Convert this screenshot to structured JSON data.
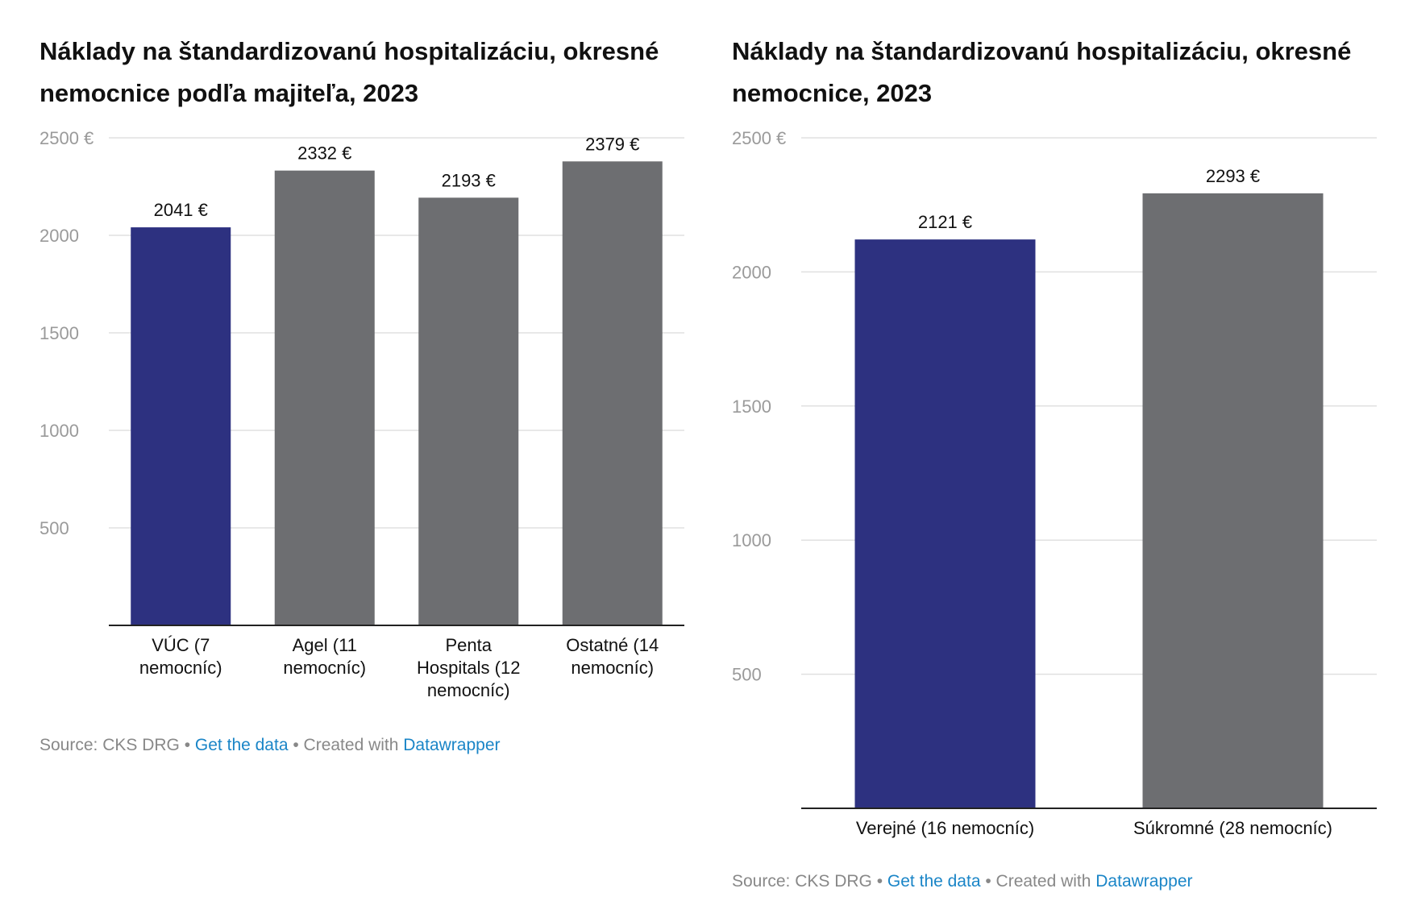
{
  "charts": [
    {
      "title": "Náklady na štandardizovanú hospitalizáciu, okresné nemocnice podľa majiteľa, 2023",
      "footer": {
        "source": "Source: CKS DRG",
        "sep1": " • ",
        "get_data": "Get the data",
        "sep2": " • Created with ",
        "datawrapper": "Datawrapper"
      }
    },
    {
      "title": "Náklady na štandardizovanú hospitalizáciu, okresné nemocnice, 2023",
      "footer": {
        "source": "Source: CKS DRG",
        "sep1": " • ",
        "get_data": "Get the data",
        "sep2": " • Created with ",
        "datawrapper": "Datawrapper"
      }
    }
  ],
  "colors": {
    "highlight": "#2d3180",
    "other": "#6d6e71",
    "grid": "#e0e0e0",
    "axis": "#222222",
    "tick_text": "#9a9a9a",
    "link": "#1a85c7"
  },
  "chart_data": [
    {
      "type": "bar",
      "categories": [
        [
          "VÚC (7",
          "nemocníc)"
        ],
        [
          "Agel (11",
          "nemocníc)"
        ],
        [
          "Penta",
          "Hospitals (12",
          "nemocníc)"
        ],
        [
          "Ostatné (14",
          "nemocníc)"
        ]
      ],
      "values": [
        2041,
        2332,
        2193,
        2379
      ],
      "value_labels": [
        "2041 €",
        "2332 €",
        "2193 €",
        "2379 €"
      ],
      "highlight_index": 0,
      "yticks": [
        500,
        1000,
        1500,
        2000,
        2500
      ],
      "ytick_labels": [
        "500",
        "1000",
        "1500",
        "2000",
        "2500 €"
      ],
      "ylim": [
        0,
        2500
      ],
      "grid": true
    },
    {
      "type": "bar",
      "categories": [
        [
          "Verejné (16 nemocníc)"
        ],
        [
          "Súkromné (28 nemocníc)"
        ]
      ],
      "values": [
        2121,
        2293
      ],
      "value_labels": [
        "2121 €",
        "2293 €"
      ],
      "highlight_index": 0,
      "yticks": [
        500,
        1000,
        1500,
        2000,
        2500
      ],
      "ytick_labels": [
        "500",
        "1000",
        "1500",
        "2000",
        "2500 €"
      ],
      "ylim": [
        0,
        2500
      ],
      "grid": true
    }
  ]
}
